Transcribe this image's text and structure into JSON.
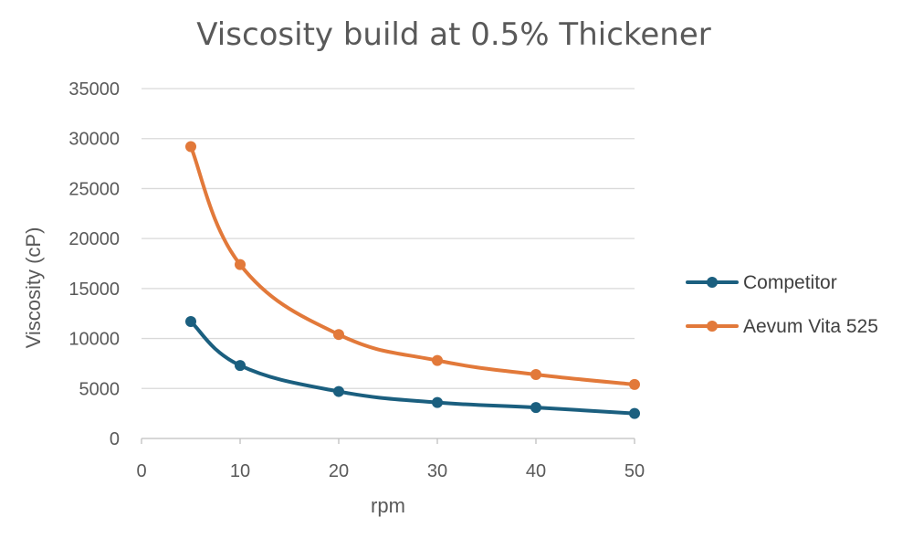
{
  "chart_data": {
    "type": "scatter",
    "title": "Viscosity build at 0.5% Thickener",
    "xlabel": "rpm",
    "ylabel": "Viscosity (cP)",
    "xlim": [
      0,
      50
    ],
    "ylim": [
      0,
      35000
    ],
    "x_ticks": [
      "0",
      "10",
      "20",
      "30",
      "40",
      "50"
    ],
    "y_ticks": [
      "0",
      "5000",
      "10000",
      "15000",
      "20000",
      "25000",
      "30000",
      "35000"
    ],
    "grid": "horizontal",
    "smoothed_lines": true,
    "legend_position": "right",
    "series": [
      {
        "name": "Competitor",
        "color": "#1b5f7f",
        "x": [
          5,
          10,
          20,
          30,
          40,
          50
        ],
        "y": [
          11700,
          7300,
          4700,
          3600,
          3100,
          2500
        ]
      },
      {
        "name": "Aevum Vita 525",
        "color": "#e2793a",
        "x": [
          5,
          10,
          20,
          30,
          40,
          50
        ],
        "y": [
          29200,
          17400,
          10400,
          7800,
          6400,
          5400
        ]
      }
    ]
  }
}
